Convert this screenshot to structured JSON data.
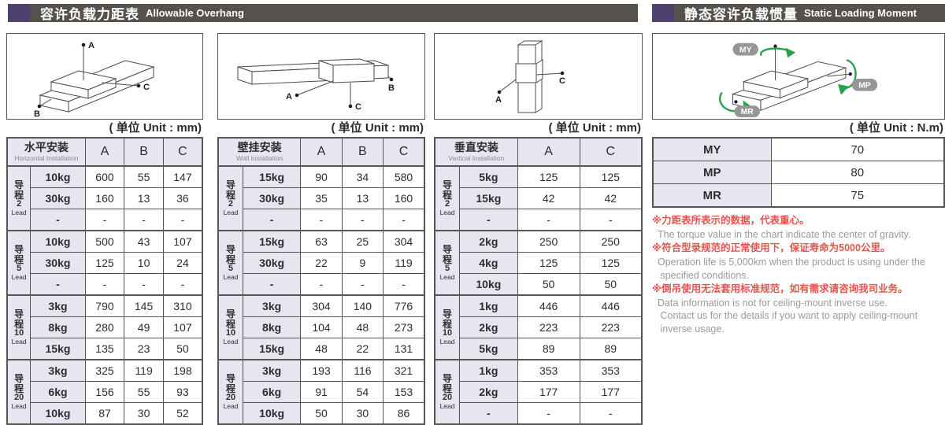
{
  "headers": {
    "overhang": {
      "zh": "容许负载力距表",
      "en": "Allowable Overhang"
    },
    "moment": {
      "zh": "静态容许负载惯量",
      "en": "Static Loading Moment"
    }
  },
  "units": {
    "mm": "( 单位 Unit : mm)",
    "nm": "( 单位 Unit : N.m)"
  },
  "lead_label": {
    "zh": "导程",
    "en": "Lead"
  },
  "tables": [
    {
      "key": "horizontal",
      "title_zh": "水平安装",
      "title_en": "Horizontal Installation",
      "columns": [
        "A",
        "B",
        "C"
      ],
      "groups": [
        {
          "lead_num": "2",
          "rows": [
            [
              "10kg",
              "600",
              "55",
              "147"
            ],
            [
              "30kg",
              "160",
              "13",
              "36"
            ],
            [
              "-",
              "-",
              "-",
              "-"
            ]
          ]
        },
        {
          "lead_num": "5",
          "rows": [
            [
              "10kg",
              "500",
              "43",
              "107"
            ],
            [
              "30kg",
              "125",
              "10",
              "24"
            ],
            [
              "-",
              "-",
              "-",
              "-"
            ]
          ]
        },
        {
          "lead_num": "10",
          "rows": [
            [
              "3kg",
              "790",
              "145",
              "310"
            ],
            [
              "8kg",
              "280",
              "49",
              "107"
            ],
            [
              "15kg",
              "135",
              "23",
              "50"
            ]
          ]
        },
        {
          "lead_num": "20",
          "rows": [
            [
              "3kg",
              "325",
              "119",
              "198"
            ],
            [
              "6kg",
              "156",
              "55",
              "93"
            ],
            [
              "10kg",
              "87",
              "30",
              "52"
            ]
          ]
        }
      ]
    },
    {
      "key": "wall",
      "title_zh": "壁挂安装",
      "title_en": "Wall Installation",
      "columns": [
        "A",
        "B",
        "C"
      ],
      "groups": [
        {
          "lead_num": "2",
          "rows": [
            [
              "15kg",
              "90",
              "34",
              "580"
            ],
            [
              "30kg",
              "35",
              "13",
              "160"
            ],
            [
              "-",
              "-",
              "-",
              "-"
            ]
          ]
        },
        {
          "lead_num": "5",
          "rows": [
            [
              "15kg",
              "63",
              "25",
              "304"
            ],
            [
              "30kg",
              "22",
              "9",
              "119"
            ],
            [
              "-",
              "-",
              "-",
              "-"
            ]
          ]
        },
        {
          "lead_num": "10",
          "rows": [
            [
              "3kg",
              "304",
              "140",
              "776"
            ],
            [
              "8kg",
              "104",
              "48",
              "273"
            ],
            [
              "15kg",
              "48",
              "22",
              "131"
            ]
          ]
        },
        {
          "lead_num": "20",
          "rows": [
            [
              "3kg",
              "193",
              "116",
              "321"
            ],
            [
              "6kg",
              "91",
              "54",
              "153"
            ],
            [
              "10kg",
              "50",
              "30",
              "86"
            ]
          ]
        }
      ]
    },
    {
      "key": "vertical",
      "title_zh": "垂直安装",
      "title_en": "Vertical Installation",
      "columns": [
        "A",
        "C"
      ],
      "groups": [
        {
          "lead_num": "2",
          "rows": [
            [
              "5kg",
              "125",
              "125"
            ],
            [
              "15kg",
              "42",
              "42"
            ],
            [
              "-",
              "-",
              "-"
            ]
          ]
        },
        {
          "lead_num": "5",
          "rows": [
            [
              "2kg",
              "250",
              "250"
            ],
            [
              "4kg",
              "125",
              "125"
            ],
            [
              "10kg",
              "50",
              "50"
            ]
          ]
        },
        {
          "lead_num": "10",
          "rows": [
            [
              "1kg",
              "446",
              "446"
            ],
            [
              "2kg",
              "223",
              "223"
            ],
            [
              "5kg",
              "89",
              "89"
            ]
          ]
        },
        {
          "lead_num": "20",
          "rows": [
            [
              "1kg",
              "353",
              "353"
            ],
            [
              "2kg",
              "177",
              "177"
            ],
            [
              "-",
              "-",
              "-"
            ]
          ]
        }
      ]
    }
  ],
  "moment_table": {
    "rows": [
      [
        "MY",
        "70"
      ],
      [
        "MP",
        "80"
      ],
      [
        "MR",
        "75"
      ]
    ]
  },
  "notes": [
    {
      "zh": "※力距表所表示的数据，代表重心。",
      "en": "The torque value in the chart indicate the center of gravity."
    },
    {
      "zh": "※符合型录规范的正常使用下，保证寿命为5000公里。",
      "en": "Operation life is 5,000km when the product is using under the\n specified conditions."
    },
    {
      "zh": "※倒吊使用无法套用标准规范，如有需求请咨询我司业务。",
      "en": "Data information is not for ceiling-mount inverse use.\n Contact us for the details if you want to apply ceiling-mount\n inverse usage."
    }
  ],
  "diagram_labels": {
    "horizontal": [
      "A",
      "B",
      "C"
    ],
    "wall": [
      "A",
      "B",
      "C"
    ],
    "vertical": [
      "A",
      "C"
    ],
    "moment": [
      "MY",
      "MP",
      "MR"
    ]
  },
  "colors": {
    "header_bar": "#56514d",
    "accent_purple": "#4d4170",
    "cell_lavender": "#e7e6f0",
    "table_border": "#59544f",
    "note_red": "#e4544c",
    "note_gray": "#9a9a9a",
    "arrow_green": "#27a24a"
  }
}
